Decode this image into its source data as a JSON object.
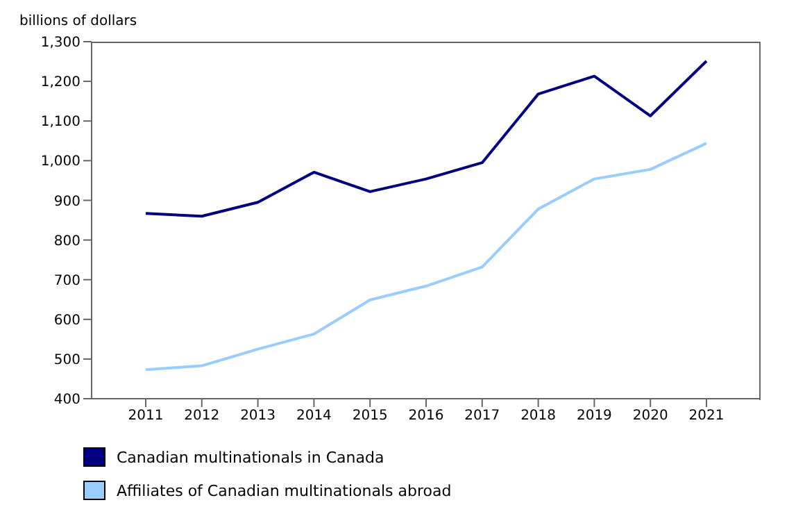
{
  "chart_data": {
    "type": "line",
    "ylabel": "billions of dollars",
    "categories": [
      "2011",
      "2012",
      "2013",
      "2014",
      "2015",
      "2016",
      "2017",
      "2018",
      "2019",
      "2020",
      "2021"
    ],
    "series": [
      {
        "name": "Canadian multinationals in Canada",
        "color": "#000080",
        "values": [
          867,
          860,
          895,
          971,
          922,
          954,
          995,
          1168,
          1213,
          1113,
          1251
        ]
      },
      {
        "name": "Affiliates of Canadian multinationals abroad",
        "color": "#99ccff",
        "values": [
          473,
          483,
          525,
          563,
          649,
          684,
          732,
          878,
          954,
          978,
          1044
        ]
      }
    ],
    "ylim": [
      400,
      1300
    ],
    "yticks": [
      {
        "value": 400,
        "label": "400"
      },
      {
        "value": 500,
        "label": "500"
      },
      {
        "value": 600,
        "label": "600"
      },
      {
        "value": 700,
        "label": "700"
      },
      {
        "value": 800,
        "label": "800"
      },
      {
        "value": 900,
        "label": "900"
      },
      {
        "value": 1000,
        "label": "1,000"
      },
      {
        "value": 1100,
        "label": "1,100"
      },
      {
        "value": 1200,
        "label": "1,200"
      },
      {
        "value": 1300,
        "label": "1,300"
      }
    ],
    "grid": false,
    "legend": "bottom",
    "marker": "none",
    "line_style": "solid"
  }
}
